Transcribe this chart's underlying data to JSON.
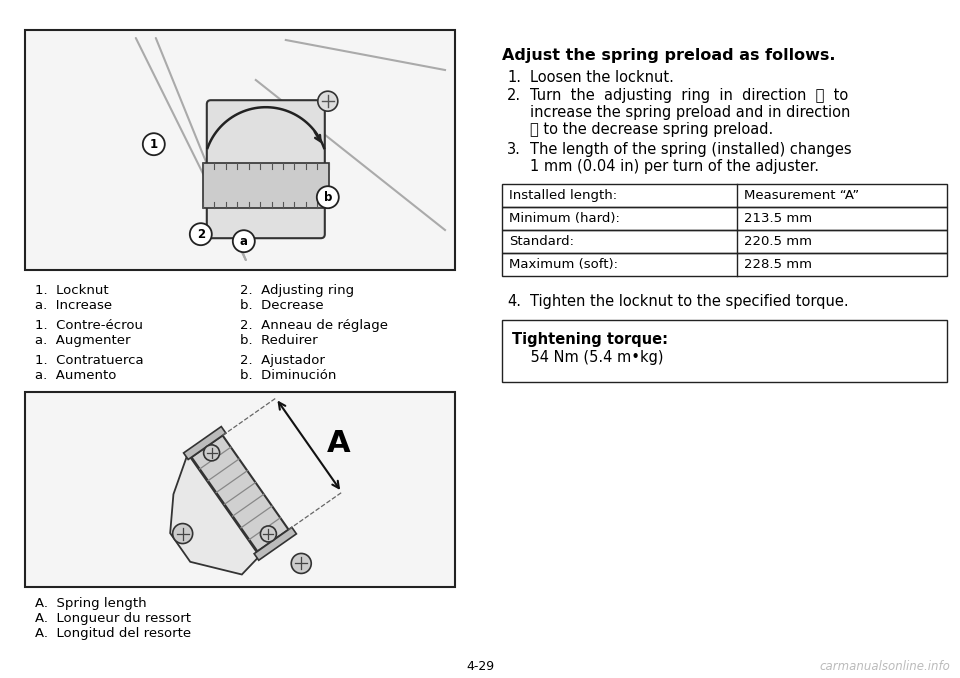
{
  "bg_color": "#ffffff",
  "page_number": "4-29",
  "left_captions_col1": [
    "1.  Locknut",
    "a.  Increase",
    "",
    "1.  Contre-écrou",
    "a.  Augmenter",
    "",
    "1.  Contratuerca",
    "a.  Aumento"
  ],
  "left_captions_col2": [
    "2.  Adjusting ring",
    "b.  Decrease",
    "",
    "2.  Anneau de réglage",
    "b.  Reduirer",
    "",
    "2.  Ajustador",
    "b.  Diminución"
  ],
  "captions_A": [
    "A.  Spring length",
    "A.  Longueur du ressort",
    "A.  Longitud del resorte"
  ],
  "heading": "Adjust the spring preload as follows.",
  "step1": "Loosen the locknut.",
  "step2_lines": [
    "Turn  the  adjusting  ring  in  direction  ⓐ  to",
    "increase the spring preload and in direction",
    "ⓑ to the decrease spring preload."
  ],
  "step3_lines": [
    "The length of the spring (installed) changes",
    "1 mm (0.04 in) per turn of the adjuster."
  ],
  "step4": "Tighten the locknut to the specified torque.",
  "table_headers": [
    "Installed length:",
    "Measurement “A”"
  ],
  "table_rows": [
    [
      "Minimum (hard):",
      "213.5 mm"
    ],
    [
      "Standard:",
      "220.5 mm"
    ],
    [
      "Maximum (soft):",
      "228.5 mm"
    ]
  ],
  "torque_title": "Tightening torque:",
  "torque_value": "    54 Nm (5.4 m•kg)",
  "watermark": "carmanualsonline.info"
}
